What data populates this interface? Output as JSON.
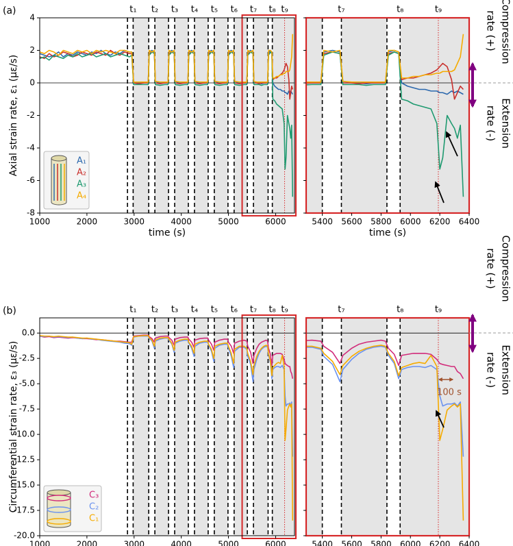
{
  "chart_data": [
    {
      "type": "line",
      "panel_label": "(a)",
      "ylabel": "Axial strain rate, ε₁ (με/s)",
      "xlabel": "time (s)",
      "xlim": [
        1000,
        6400
      ],
      "xticks": [
        1000,
        2000,
        3000,
        4000,
        5000,
        6000
      ],
      "zoom_xlim": [
        5290,
        6400
      ],
      "zoom_xticks": [
        5400,
        5600,
        5800,
        6000,
        6200,
        6400
      ],
      "zoom_color": "#d62728",
      "ylim": [
        -8,
        4
      ],
      "yticks": [
        -8,
        -6,
        -4,
        -2,
        0,
        2,
        4
      ],
      "shaded_from": 2980,
      "shade_color": "#e5e5e5",
      "legend": "lower left",
      "side_labels": [
        "Compression",
        "rate (+)",
        "Extension",
        "rate (-)"
      ],
      "t_marks": [
        {
          "label": "t₁",
          "start": 2860,
          "end": 2980
        },
        {
          "label": "t₂",
          "start": 3310,
          "end": 3440
        },
        {
          "label": "t₃",
          "start": 3730,
          "end": 3860
        },
        {
          "label": "t₄",
          "start": 4150,
          "end": 4280
        },
        {
          "label": "t₅",
          "start": 4570,
          "end": 4700
        },
        {
          "label": "t₆",
          "start": 4990,
          "end": 5120
        },
        {
          "label": "t₇",
          "start": 5400,
          "end": 5530
        },
        {
          "label": "t₈",
          "start": 5840,
          "end": 5930
        },
        {
          "label": "t₉",
          "at": 6190
        }
      ],
      "x": [
        1000,
        1100,
        1200,
        1300,
        1400,
        1500,
        1600,
        1700,
        1800,
        1900,
        2000,
        2100,
        2200,
        2300,
        2400,
        2500,
        2600,
        2700,
        2800,
        2900,
        2950,
        2990,
        3100,
        3200,
        3300,
        3320,
        3380,
        3430,
        3450,
        3550,
        3650,
        3720,
        3740,
        3800,
        3850,
        3870,
        3970,
        4070,
        4140,
        4160,
        4220,
        4270,
        4290,
        4390,
        4490,
        4560,
        4580,
        4640,
        4690,
        4710,
        4810,
        4910,
        4980,
        5000,
        5060,
        5110,
        5130,
        5230,
        5330,
        5390,
        5410,
        5470,
        5520,
        5540,
        5600,
        5650,
        5700,
        5750,
        5800,
        5830,
        5850,
        5890,
        5920,
        5940,
        5980,
        6020,
        6060,
        6100,
        6140,
        6180,
        6200,
        6220,
        6250,
        6280,
        6300,
        6320,
        6340,
        6360
      ],
      "series": [
        {
          "name": "A₁",
          "color": "#2b68ad",
          "values": [
            1.8,
            1.7,
            1.6,
            1.7,
            1.9,
            1.6,
            1.8,
            1.7,
            1.9,
            1.8,
            1.7,
            1.9,
            1.8,
            2.0,
            1.8,
            1.7,
            1.9,
            1.8,
            2.0,
            1.9,
            1.9,
            0.05,
            0.0,
            0.0,
            0.05,
            1.9,
            2.0,
            1.9,
            0.1,
            0.0,
            0.0,
            0.0,
            1.9,
            2.0,
            1.9,
            0.1,
            0.0,
            0.0,
            0.0,
            1.9,
            2.0,
            1.9,
            0.1,
            0.0,
            0.0,
            0.0,
            1.9,
            2.0,
            1.9,
            0.1,
            0.0,
            0.0,
            0.0,
            1.9,
            2.0,
            1.9,
            0.1,
            0.0,
            0.0,
            0.0,
            1.9,
            2.0,
            1.9,
            0.1,
            0.0,
            0.0,
            -0.05,
            0.0,
            0.0,
            0.0,
            1.9,
            2.0,
            1.9,
            0.0,
            -0.2,
            -0.3,
            -0.4,
            -0.4,
            -0.5,
            -0.5,
            -0.6,
            -0.6,
            -0.7,
            -0.5,
            -0.6,
            -0.5,
            -0.6,
            -0.7
          ]
        },
        {
          "name": "A₂",
          "color": "#c9302c",
          "values": [
            1.6,
            1.5,
            1.8,
            1.6,
            1.7,
            1.9,
            1.8,
            1.6,
            1.7,
            1.9,
            1.8,
            1.7,
            1.9,
            1.8,
            1.7,
            2.0,
            1.8,
            1.7,
            1.9,
            1.8,
            1.8,
            0.0,
            -0.05,
            0.0,
            0.0,
            1.8,
            1.9,
            1.8,
            0.0,
            -0.05,
            0.0,
            0.0,
            1.8,
            1.9,
            1.8,
            0.0,
            -0.05,
            0.0,
            0.0,
            1.8,
            1.9,
            1.8,
            0.0,
            -0.05,
            0.0,
            0.0,
            1.8,
            1.9,
            1.8,
            0.0,
            -0.05,
            0.0,
            0.0,
            1.8,
            1.9,
            1.8,
            0.0,
            -0.05,
            0.0,
            0.0,
            1.8,
            1.9,
            1.8,
            0.0,
            0.0,
            -0.05,
            0.0,
            0.0,
            0.0,
            0.0,
            1.8,
            1.9,
            1.8,
            0.2,
            0.3,
            0.3,
            0.4,
            0.5,
            0.6,
            0.8,
            1.0,
            1.2,
            1.0,
            0.2,
            -1.0,
            -0.6,
            -0.2,
            -0.4
          ]
        },
        {
          "name": "A₃",
          "color": "#1f9a70",
          "values": [
            1.5,
            1.6,
            1.4,
            1.7,
            1.6,
            1.5,
            1.7,
            1.6,
            1.8,
            1.6,
            1.7,
            1.8,
            1.6,
            1.7,
            1.8,
            1.6,
            1.7,
            1.8,
            1.7,
            1.6,
            1.7,
            -0.1,
            -0.1,
            -0.1,
            -0.1,
            1.7,
            1.9,
            1.8,
            -0.1,
            -0.15,
            -0.1,
            -0.1,
            1.7,
            1.9,
            1.8,
            -0.1,
            -0.15,
            -0.1,
            -0.1,
            1.7,
            1.9,
            1.8,
            -0.1,
            -0.15,
            -0.1,
            -0.1,
            1.7,
            1.9,
            1.8,
            -0.1,
            -0.15,
            -0.1,
            -0.1,
            1.7,
            1.9,
            1.8,
            -0.1,
            -0.15,
            -0.1,
            -0.1,
            1.7,
            1.9,
            1.8,
            -0.1,
            -0.1,
            -0.1,
            -0.15,
            -0.1,
            -0.1,
            -0.1,
            1.7,
            1.9,
            1.8,
            -1.0,
            -1.1,
            -1.3,
            -1.4,
            -1.5,
            -1.6,
            -2.5,
            -5.3,
            -4.6,
            -2.0,
            -2.5,
            -2.8,
            -3.4,
            -2.6,
            -7.0
          ]
        },
        {
          "name": "A₄",
          "color": "#f5ab00",
          "values": [
            1.9,
            1.8,
            2.0,
            1.9,
            1.7,
            2.0,
            1.9,
            1.8,
            2.0,
            1.9,
            2.0,
            1.8,
            2.0,
            1.9,
            2.0,
            1.9,
            1.8,
            2.0,
            2.0,
            1.9,
            1.9,
            0.05,
            0.05,
            0.05,
            0.05,
            2.0,
            1.9,
            2.0,
            0.1,
            0.05,
            0.05,
            0.05,
            2.0,
            1.9,
            2.0,
            0.1,
            0.05,
            0.05,
            0.05,
            2.0,
            1.9,
            2.0,
            0.1,
            0.05,
            0.05,
            0.05,
            2.0,
            1.9,
            2.0,
            0.1,
            0.05,
            0.05,
            0.05,
            2.0,
            1.9,
            2.0,
            0.1,
            0.05,
            0.05,
            0.05,
            2.0,
            1.9,
            2.0,
            0.1,
            0.05,
            0.05,
            0.05,
            0.05,
            0.05,
            0.05,
            2.0,
            2.0,
            1.9,
            0.3,
            0.3,
            0.4,
            0.4,
            0.5,
            0.5,
            0.6,
            0.6,
            0.7,
            0.7,
            0.7,
            0.8,
            1.2,
            1.6,
            3.0
          ]
        }
      ]
    },
    {
      "type": "line",
      "panel_label": "(b)",
      "ylabel": "Circumferential strain rate, ε₃ (με/s)",
      "xlabel": "time (s)",
      "xlim": [
        1000,
        6400
      ],
      "xticks": [
        1000,
        2000,
        3000,
        4000,
        5000,
        6000
      ],
      "zoom_xlim": [
        5290,
        6400
      ],
      "zoom_xticks": [
        5400,
        5600,
        5800,
        6000,
        6200,
        6400
      ],
      "zoom_color": "#d62728",
      "ylim": [
        -20,
        1.5
      ],
      "yticks": [
        {
          "value": -20,
          "label": "-20.0"
        },
        -17.5,
        {
          "value": -15,
          "label": "-15.0"
        },
        -12.5,
        {
          "value": -10,
          "label": "-10.0"
        },
        -7.5,
        {
          "value": -5,
          "label": "-5.0"
        },
        -2.5,
        {
          "value": 0,
          "label": "0.0"
        }
      ],
      "shaded_from": 2980,
      "shade_color": "#e5e5e5",
      "legend": "lower left",
      "side_labels": [
        "Compression",
        "rate (+)",
        "Extension",
        "rate (-)"
      ],
      "annotation": "100 s",
      "t_marks": [
        {
          "label": "t₁",
          "start": 2860,
          "end": 2980
        },
        {
          "label": "t₂",
          "start": 3310,
          "end": 3440
        },
        {
          "label": "t₃",
          "start": 3730,
          "end": 3860
        },
        {
          "label": "t₄",
          "start": 4150,
          "end": 4280
        },
        {
          "label": "t₅",
          "start": 4570,
          "end": 4700
        },
        {
          "label": "t₆",
          "start": 4990,
          "end": 5120
        },
        {
          "label": "t₇",
          "start": 5400,
          "end": 5530
        },
        {
          "label": "t₈",
          "start": 5840,
          "end": 5930
        },
        {
          "label": "t₉",
          "at": 6190
        }
      ],
      "x": [
        1000,
        1100,
        1200,
        1300,
        1400,
        1500,
        1600,
        1700,
        1800,
        1900,
        2000,
        2100,
        2200,
        2300,
        2400,
        2500,
        2600,
        2700,
        2800,
        2900,
        2950,
        2990,
        3100,
        3200,
        3300,
        3320,
        3380,
        3430,
        3450,
        3550,
        3650,
        3720,
        3740,
        3800,
        3850,
        3870,
        3970,
        4070,
        4140,
        4160,
        4220,
        4270,
        4290,
        4390,
        4490,
        4560,
        4580,
        4640,
        4690,
        4710,
        4810,
        4910,
        4980,
        5000,
        5060,
        5110,
        5130,
        5230,
        5330,
        5390,
        5410,
        5470,
        5520,
        5540,
        5600,
        5650,
        5700,
        5750,
        5800,
        5830,
        5850,
        5890,
        5920,
        5940,
        5980,
        6020,
        6060,
        6100,
        6140,
        6180,
        6200,
        6220,
        6250,
        6280,
        6300,
        6320,
        6340,
        6360
      ],
      "series": [
        {
          "name": "C₃",
          "color": "#d12b7a",
          "values": [
            -0.3,
            -0.4,
            -0.35,
            -0.45,
            -0.4,
            -0.45,
            -0.5,
            -0.45,
            -0.5,
            -0.55,
            -0.55,
            -0.6,
            -0.65,
            -0.65,
            -0.7,
            -0.75,
            -0.8,
            -0.8,
            -0.85,
            -0.9,
            -0.9,
            -0.3,
            -0.25,
            -0.2,
            -0.2,
            -0.35,
            -0.55,
            -0.9,
            -0.5,
            -0.35,
            -0.3,
            -0.3,
            -0.45,
            -0.7,
            -1.2,
            -0.6,
            -0.45,
            -0.4,
            -0.4,
            -0.6,
            -0.9,
            -1.4,
            -0.7,
            -0.55,
            -0.5,
            -0.5,
            -0.7,
            -1.1,
            -1.7,
            -0.9,
            -0.7,
            -0.6,
            -0.6,
            -0.9,
            -1.3,
            -2.0,
            -1.0,
            -0.8,
            -0.7,
            -0.8,
            -1.3,
            -1.9,
            -3.0,
            -2.2,
            -1.5,
            -1.1,
            -0.9,
            -0.8,
            -0.7,
            -0.8,
            -1.5,
            -2.1,
            -3.2,
            -2.2,
            -2.1,
            -2.0,
            -2.0,
            -2.0,
            -2.1,
            -2.6,
            -3.0,
            -3.1,
            -3.2,
            -3.3,
            -3.3,
            -3.8,
            -4.0,
            -4.5
          ]
        },
        {
          "name": "C₂",
          "color": "#6a92ef",
          "values": [
            -0.3,
            -0.35,
            -0.3,
            -0.4,
            -0.35,
            -0.4,
            -0.45,
            -0.4,
            -0.5,
            -0.55,
            -0.5,
            -0.6,
            -0.6,
            -0.7,
            -0.75,
            -0.8,
            -0.85,
            -0.9,
            -1.0,
            -1.05,
            -1.2,
            -0.4,
            -0.3,
            -0.3,
            -0.3,
            -0.5,
            -0.8,
            -1.5,
            -0.8,
            -0.6,
            -0.5,
            -0.5,
            -0.7,
            -1.1,
            -1.9,
            -1.0,
            -0.8,
            -0.7,
            -0.7,
            -1.0,
            -1.5,
            -2.3,
            -1.3,
            -1.0,
            -0.9,
            -0.9,
            -1.2,
            -1.8,
            -2.8,
            -1.5,
            -1.2,
            -1.1,
            -1.1,
            -1.5,
            -2.3,
            -3.4,
            -1.8,
            -1.4,
            -1.4,
            -1.6,
            -2.3,
            -3.1,
            -4.8,
            -3.6,
            -2.6,
            -2.0,
            -1.6,
            -1.4,
            -1.3,
            -1.4,
            -2.2,
            -3.0,
            -4.5,
            -3.6,
            -3.4,
            -3.3,
            -3.3,
            -3.4,
            -3.2,
            -3.6,
            -6.2,
            -7.2,
            -7.0,
            -7.0,
            -6.9,
            -7.2,
            -6.8,
            -12.2
          ]
        },
        {
          "name": "C₁",
          "color": "#f5ab00",
          "values": [
            -0.25,
            -0.3,
            -0.3,
            -0.35,
            -0.3,
            -0.35,
            -0.4,
            -0.4,
            -0.45,
            -0.5,
            -0.5,
            -0.55,
            -0.6,
            -0.65,
            -0.7,
            -0.75,
            -0.8,
            -0.85,
            -0.9,
            -0.95,
            -1.1,
            -0.35,
            -0.3,
            -0.25,
            -0.25,
            -0.45,
            -0.7,
            -1.3,
            -0.7,
            -0.5,
            -0.45,
            -0.45,
            -0.6,
            -1.0,
            -1.7,
            -0.9,
            -0.7,
            -0.6,
            -0.6,
            -0.9,
            -1.3,
            -2.0,
            -1.1,
            -0.9,
            -0.8,
            -0.8,
            -1.1,
            -1.6,
            -2.5,
            -1.3,
            -1.1,
            -1.0,
            -1.0,
            -1.3,
            -2.0,
            -3.0,
            -1.6,
            -1.3,
            -1.3,
            -1.5,
            -2.0,
            -2.8,
            -4.1,
            -3.2,
            -2.3,
            -1.8,
            -1.5,
            -1.3,
            -1.2,
            -1.3,
            -2.0,
            -2.8,
            -4.2,
            -3.4,
            -3.2,
            -3.0,
            -2.9,
            -3.0,
            -2.2,
            -3.3,
            -10.6,
            -9.5,
            -7.6,
            -7.2,
            -7.0,
            -7.3,
            -7.0,
            -18.5
          ]
        }
      ]
    }
  ]
}
